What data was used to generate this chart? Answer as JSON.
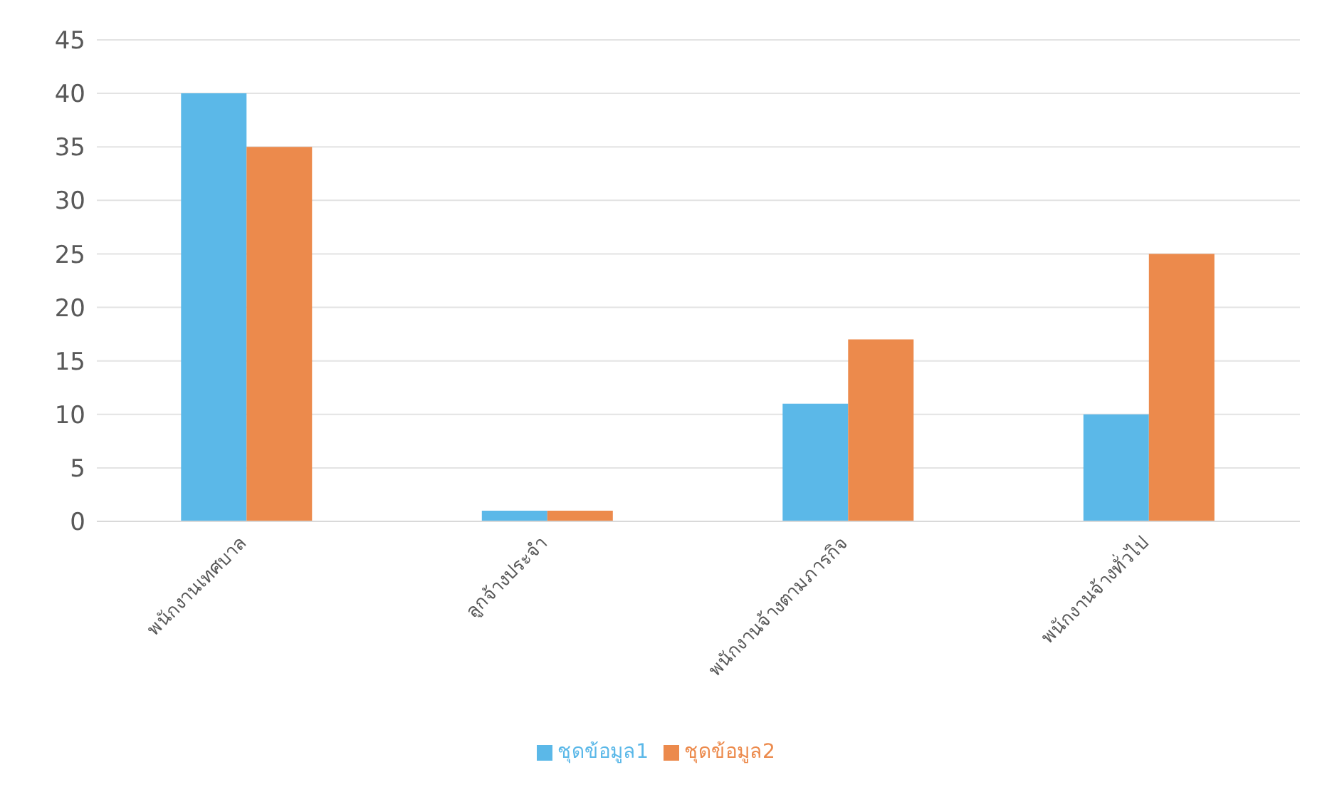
{
  "chart_data": {
    "type": "bar",
    "categories": [
      "พนักงานเทศบาล",
      "ลูกจ้างประจำ",
      "พนักงานจ้างตามภารกิจ",
      "พนักงานจ้างทั่วไป"
    ],
    "series": [
      {
        "name": "ชุดข้อมูล1",
        "color": "#5bb8e8",
        "values": [
          40,
          1,
          11,
          10
        ]
      },
      {
        "name": "ชุดข้อมูล2",
        "color": "#ec8a4c",
        "values": [
          35,
          1,
          17,
          25
        ]
      }
    ],
    "ylim": [
      0,
      45
    ],
    "yticks": [
      0,
      5,
      10,
      15,
      20,
      25,
      30,
      35,
      40,
      45
    ],
    "grid": "y",
    "legend": "bottom"
  }
}
